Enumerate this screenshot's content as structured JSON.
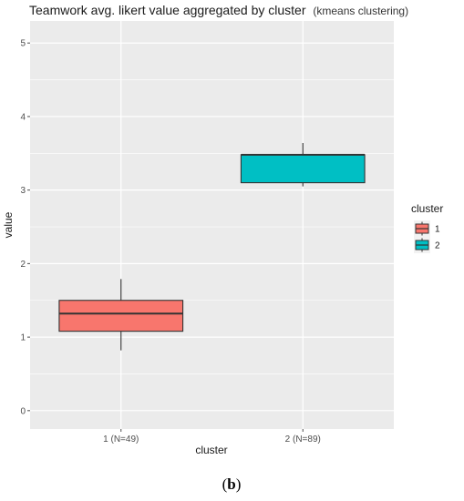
{
  "chart_data": {
    "type": "boxplot",
    "title": "Teamwork avg. likert value aggregated by cluster",
    "title_suffix": "(kmeans clustering)",
    "xlabel": "cluster",
    "ylabel": "value",
    "ylim": [
      -0.25,
      5.3
    ],
    "yticks": [
      0,
      1,
      2,
      3,
      4,
      5
    ],
    "categories": [
      "1 (N=49)",
      "2 (N=89)"
    ],
    "series": [
      {
        "name": "1",
        "color": "#F8766D",
        "whisker_low": 0.82,
        "q1": 1.08,
        "median": 1.32,
        "q3": 1.5,
        "whisker_high": 1.79
      },
      {
        "name": "2",
        "color": "#00BFC4",
        "whisker_low": 3.05,
        "q1": 3.1,
        "median": 3.48,
        "q3": 3.48,
        "whisker_high": 3.64
      }
    ],
    "legend": {
      "title": "cluster",
      "position": "right",
      "entries": [
        "1",
        "2"
      ]
    },
    "grid": true,
    "background": "#EBEBEB",
    "grid_color": "#FFFFFF"
  },
  "caption": {
    "open": "(",
    "letter": "b",
    "close": ")"
  }
}
